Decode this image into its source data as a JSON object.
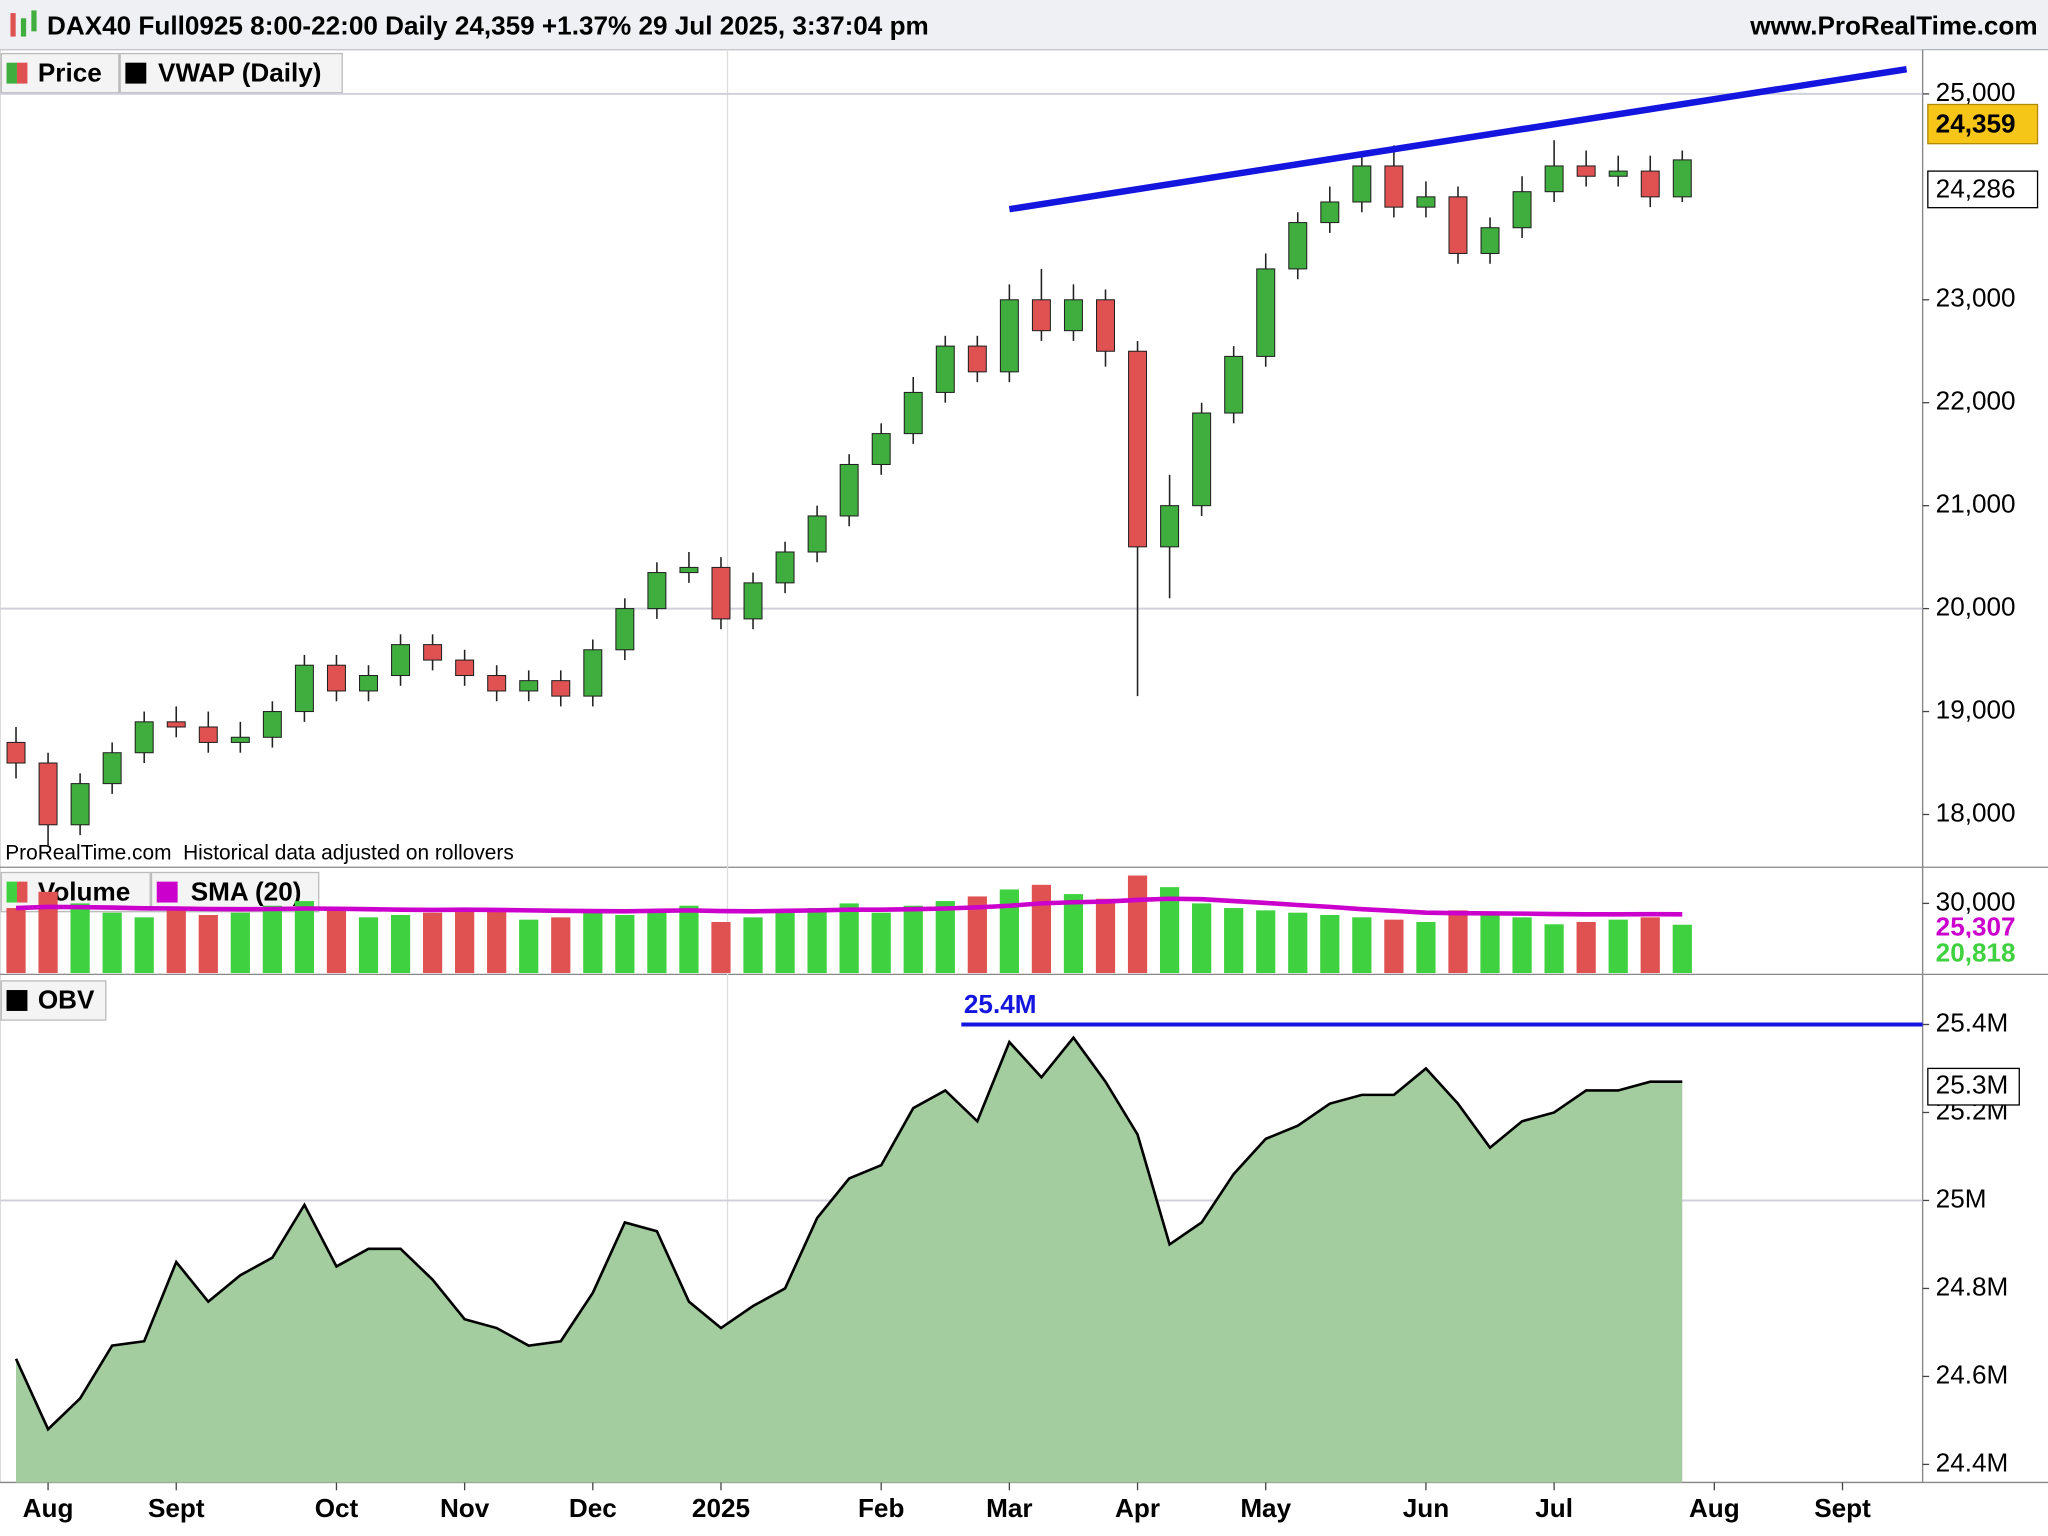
{
  "header": {
    "title": "DAX40 Full0925 8:00-22:00 Daily 24,359 +1.37% 29 Jul 2025, 3:37:04 pm",
    "site": "www.ProRealTime.com"
  },
  "chart_data": [
    {
      "type": "candlestick",
      "series": [
        {
          "name": "Price",
          "up_color": "#3fae3f",
          "down_color": "#e05252"
        },
        {
          "name": "VWAP (Daily)",
          "color": "#000000"
        }
      ],
      "open": [
        18700,
        18500,
        17900,
        18300,
        18600,
        18900,
        18850,
        18700,
        18750,
        19000,
        19450,
        19200,
        19350,
        19650,
        19500,
        19350,
        19200,
        19300,
        19150,
        19600,
        20000,
        20350,
        20400,
        19900,
        20250,
        20550,
        20900,
        21400,
        21700,
        22100,
        22550,
        22300,
        23000,
        22700,
        23000,
        22500,
        20600,
        21000,
        21900,
        22450,
        23300,
        23750,
        23950,
        24300,
        23900,
        24000,
        23450,
        23700,
        24050,
        24300,
        24200,
        24250,
        24000,
        null,
        null,
        null,
        null,
        null,
        null,
        null
      ],
      "high": [
        18850,
        18600,
        18400,
        18700,
        19000,
        19050,
        19000,
        18900,
        19100,
        19550,
        19550,
        19450,
        19750,
        19750,
        19600,
        19450,
        19400,
        19400,
        19700,
        20100,
        20450,
        20550,
        20500,
        20350,
        20650,
        21000,
        21500,
        21800,
        22250,
        22650,
        22650,
        23150,
        23300,
        23150,
        23100,
        22600,
        21300,
        22000,
        22550,
        23450,
        23850,
        24100,
        24400,
        24500,
        24150,
        24100,
        23800,
        24200,
        24550,
        24450,
        24400,
        24400,
        24450,
        null,
        null,
        null,
        null,
        null,
        null,
        null
      ],
      "low": [
        18350,
        17700,
        17800,
        18200,
        18500,
        18750,
        18600,
        18600,
        18650,
        18900,
        19100,
        19100,
        19250,
        19400,
        19250,
        19100,
        19100,
        19050,
        19050,
        19500,
        19900,
        20250,
        19800,
        19800,
        20150,
        20450,
        20800,
        21300,
        21600,
        22000,
        22200,
        22200,
        22600,
        22600,
        22350,
        19150,
        20100,
        20900,
        21800,
        22350,
        23200,
        23650,
        23850,
        23800,
        23800,
        23350,
        23350,
        23600,
        23950,
        24100,
        24100,
        23900,
        23950,
        null,
        null,
        null,
        null,
        null,
        null,
        null
      ],
      "close": [
        18500,
        17900,
        18300,
        18600,
        18900,
        18850,
        18700,
        18750,
        19000,
        19450,
        19200,
        19350,
        19650,
        19500,
        19350,
        19200,
        19300,
        19150,
        19600,
        20000,
        20350,
        20400,
        19900,
        20250,
        20550,
        20900,
        21400,
        21700,
        22100,
        22550,
        22300,
        23000,
        22700,
        23000,
        22500,
        20600,
        21000,
        21900,
        22450,
        23300,
        23750,
        23950,
        24300,
        23900,
        24000,
        23450,
        23700,
        24050,
        24300,
        24200,
        24250,
        24000,
        24359,
        null,
        null,
        null,
        null,
        null,
        null,
        null
      ],
      "ylim": [
        17500,
        25430
      ],
      "yticks": [
        {
          "value": 18000,
          "label": "18,000"
        },
        {
          "value": 19000,
          "label": "19,000"
        },
        {
          "value": 20000,
          "label": "20,000"
        },
        {
          "value": 21000,
          "label": "21,000"
        },
        {
          "value": 22000,
          "label": "22,000"
        },
        {
          "value": 23000,
          "label": "23,000"
        },
        {
          "value": 25000,
          "label": "25,000"
        }
      ],
      "grid_lines": [
        20000,
        25000
      ],
      "last_label": {
        "value": 24359,
        "label": "24,359"
      },
      "vwap_label": {
        "value": 24286,
        "label": "24,286"
      },
      "trendline": {
        "start": [
          31,
          23880
        ],
        "end": [
          59,
          25240
        ],
        "color": "#1515e0"
      },
      "footnote": "ProRealTime.com  Historical data adjusted on rollovers"
    },
    {
      "type": "bar",
      "series": [
        {
          "name": "Volume",
          "values": [
            28000,
            35000,
            30000,
            26000,
            24000,
            27000,
            25000,
            26000,
            29000,
            31000,
            27000,
            24000,
            25000,
            26000,
            28000,
            27000,
            23000,
            24000,
            26000,
            25000,
            27000,
            29000,
            22000,
            24000,
            27000,
            28000,
            30000,
            26000,
            29000,
            31000,
            33000,
            36000,
            38000,
            34000,
            32000,
            42000,
            37000,
            30000,
            28000,
            27000,
            26000,
            25000,
            24000,
            23000,
            22000,
            27000,
            25000,
            24000,
            21000,
            22000,
            23000,
            24000,
            20818,
            null,
            null,
            null,
            null,
            null,
            null,
            null
          ],
          "last_label": {
            "value": 20818,
            "label": "20,818"
          },
          "color": "#3fd13f"
        },
        {
          "name": "SMA (20)",
          "type": "line",
          "color": "#cc00cc",
          "values": [
            28000,
            28500,
            28400,
            28200,
            27900,
            27800,
            27600,
            27500,
            27600,
            27800,
            27700,
            27500,
            27300,
            27200,
            27300,
            27200,
            27000,
            26800,
            26700,
            26600,
            26800,
            27000,
            26700,
            26600,
            26800,
            27000,
            27300,
            27300,
            27500,
            27800,
            28300,
            29000,
            30000,
            30500,
            30800,
            31500,
            32000,
            31800,
            31000,
            30200,
            29300,
            28500,
            27500,
            26800,
            26000,
            25800,
            25700,
            25600,
            25400,
            25300,
            25300,
            25350,
            25307,
            null,
            null,
            null,
            null,
            null,
            null,
            null
          ],
          "last_label": {
            "value": 25307,
            "label": "25,307"
          }
        }
      ],
      "ylim": [
        0,
        45000
      ],
      "yticks": [
        {
          "value": 30000,
          "label": "30,000"
        }
      ]
    },
    {
      "type": "area",
      "series": [
        {
          "name": "OBV",
          "color": "#a3cc9f",
          "line_color": "#000000",
          "values": [
            24.64,
            24.48,
            24.55,
            24.67,
            24.68,
            24.86,
            24.77,
            24.83,
            24.87,
            24.99,
            24.85,
            24.89,
            24.89,
            24.82,
            24.73,
            24.71,
            24.67,
            24.68,
            24.79,
            24.95,
            24.93,
            24.77,
            24.71,
            24.76,
            24.8,
            24.96,
            25.05,
            25.08,
            25.21,
            25.25,
            25.18,
            25.36,
            25.28,
            25.37,
            25.27,
            25.15,
            24.9,
            24.95,
            25.06,
            25.14,
            25.17,
            25.22,
            25.24,
            25.24,
            25.3,
            25.22,
            25.12,
            25.18,
            25.2,
            25.25,
            25.25,
            25.27,
            25.27,
            null,
            null,
            null,
            null,
            null,
            null,
            null
          ]
        }
      ],
      "categories": [
        null,
        "Aug",
        null,
        null,
        null,
        "Sept",
        null,
        null,
        null,
        null,
        "Oct",
        null,
        null,
        null,
        "Nov",
        null,
        null,
        null,
        "Dec",
        null,
        null,
        null,
        "2025",
        null,
        null,
        null,
        null,
        "Feb",
        null,
        null,
        null,
        "Mar",
        null,
        null,
        null,
        "Apr",
        null,
        null,
        null,
        "May",
        null,
        null,
        null,
        null,
        "Jun",
        null,
        null,
        null,
        "Jul",
        null,
        null,
        null,
        null,
        "Aug",
        null,
        null,
        null,
        "Sept",
        null,
        null
      ],
      "ylim": [
        24.359,
        25.508
      ],
      "yticks": [
        {
          "value": 24.4,
          "label": "24.4M"
        },
        {
          "value": 24.6,
          "label": "24.6M"
        },
        {
          "value": 24.8,
          "label": "24.8M"
        },
        {
          "value": 25,
          "label": "25M"
        },
        {
          "value": 25.2,
          "label": "25.2M"
        },
        {
          "value": 25.4,
          "label": "25.4M"
        }
      ],
      "grid_lines": [
        25
      ],
      "current_label": {
        "value": 25.3,
        "label": "25.3M"
      },
      "hline": {
        "value": 25.4,
        "label": "25.4M",
        "start": 30,
        "color": "#1515e0"
      }
    }
  ]
}
